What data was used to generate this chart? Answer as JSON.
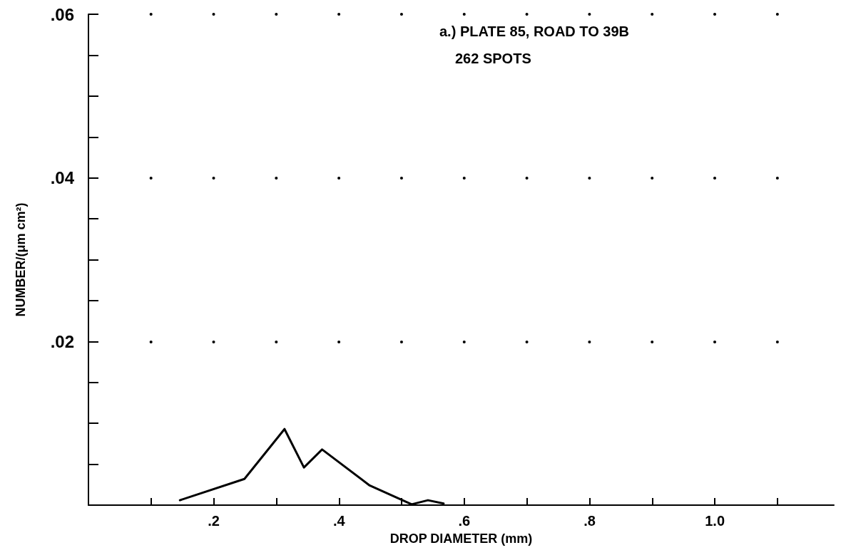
{
  "chart_data": {
    "type": "line",
    "xlabel": "DROP DIAMETER (mm)",
    "ylabel": "NUMBER/(μm cm²)",
    "annotations": [
      "a.) PLATE 85, ROAD TO 39B",
      "262 SPOTS"
    ],
    "x": [
      0.146,
      0.249,
      0.313,
      0.344,
      0.373,
      0.449,
      0.516,
      0.542,
      0.567
    ],
    "series": [
      {
        "color": "#000000",
        "values": [
          0.0006,
          0.0032,
          0.0093,
          0.0046,
          0.0068,
          0.0024,
          0.0001,
          0.0006,
          0.0002
        ]
      }
    ],
    "xlim": [
      0,
      1.19
    ],
    "xticks": [
      {
        "value": 0.1,
        "label": null
      },
      {
        "value": 0.2,
        "label": ".2"
      },
      {
        "value": 0.3,
        "label": null
      },
      {
        "value": 0.4,
        "label": ".4"
      },
      {
        "value": 0.5,
        "label": null
      },
      {
        "value": 0.6,
        "label": ".6"
      },
      {
        "value": 0.7,
        "label": null
      },
      {
        "value": 0.8,
        "label": ".8"
      },
      {
        "value": 0.9,
        "label": null
      },
      {
        "value": 1.0,
        "label": "1.0"
      },
      {
        "value": 1.1,
        "label": null
      }
    ],
    "ylim": [
      0,
      0.06
    ],
    "yticks": [
      {
        "value": 0.005,
        "label": null
      },
      {
        "value": 0.01,
        "label": null
      },
      {
        "value": 0.015,
        "label": null
      },
      {
        "value": 0.02,
        "label": ".02"
      },
      {
        "value": 0.025,
        "label": null
      },
      {
        "value": 0.03,
        "label": null
      },
      {
        "value": 0.035,
        "label": null
      },
      {
        "value": 0.04,
        "label": ".04"
      },
      {
        "value": 0.045,
        "label": null
      },
      {
        "value": 0.05,
        "label": null
      },
      {
        "value": 0.055,
        "label": null
      },
      {
        "value": 0.06,
        "label": ".06"
      }
    ],
    "grid": true,
    "marker": "none",
    "line_style": "solid"
  }
}
